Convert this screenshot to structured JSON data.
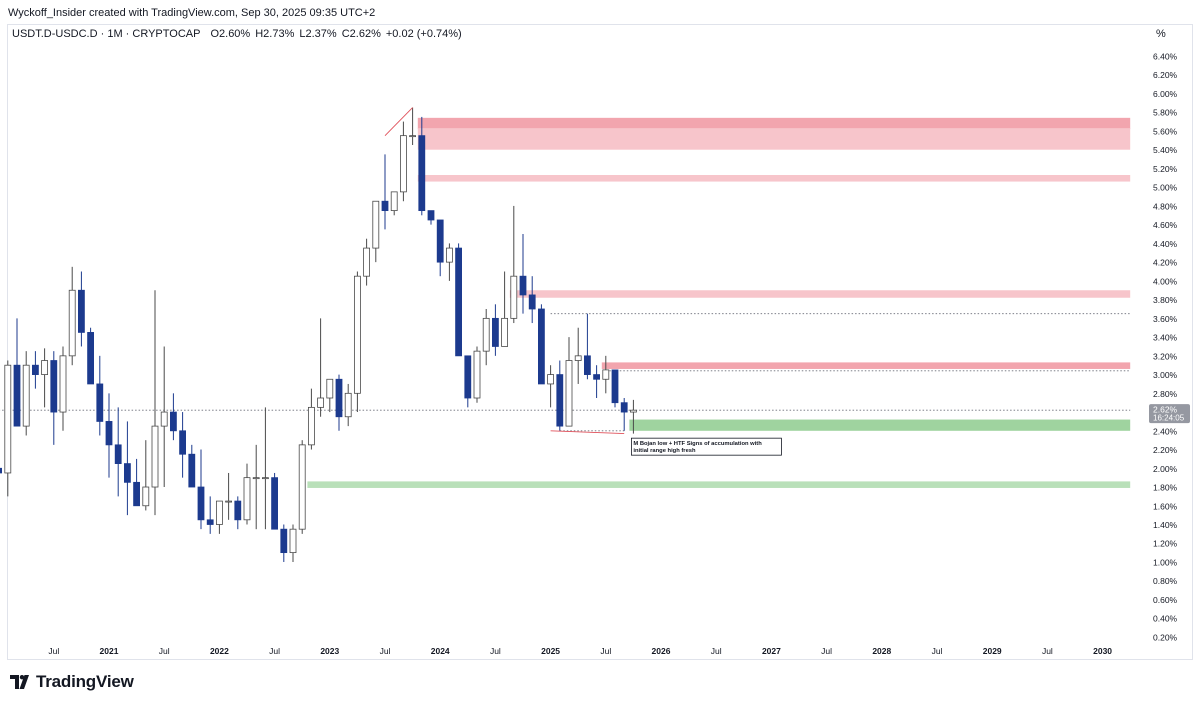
{
  "caption": "Wyckoff_Insider created with TradingView.com, Sep 30, 2025 09:35 UTC+2",
  "legend": {
    "symbol": "USDT.D-USDC.D · 1M · CRYPTOCAP",
    "o_label": "O",
    "o_value": "2.60%",
    "h_label": "H",
    "h_value": "2.73%",
    "l_label": "L",
    "l_value": "2.37%",
    "c_label": "C",
    "c_value": "2.62%",
    "change": "+0.02 (+0.74%)"
  },
  "unit": "%",
  "brand": "TradingView",
  "colors": {
    "bull_fill": "#ffffff",
    "bull_border": "#4a4a4a",
    "bear_fill": "#1c3a8e",
    "bear_border": "#1c3a8e",
    "supply_zone": "#f7c5cb",
    "supply_zone_strong": "#f2a5ae",
    "demand_zone": "#b9e0b9",
    "demand_zone_strong": "#9fd39f",
    "annotation_line": "#e0505a",
    "price_tag_bg": "#9598a1"
  },
  "chart_data": {
    "type": "candlestick",
    "interval": "1M",
    "ylim": [
      0.15,
      6.55
    ],
    "y_ticks": [
      6.4,
      6.2,
      6.0,
      5.8,
      5.6,
      5.4,
      5.2,
      5.0,
      4.8,
      4.6,
      4.4,
      4.2,
      4.0,
      3.8,
      3.6,
      3.4,
      3.2,
      3.0,
      2.8,
      2.6,
      2.4,
      2.2,
      2.0,
      1.8,
      1.6,
      1.4,
      1.2,
      1.0,
      0.8,
      0.6,
      0.4,
      0.2
    ],
    "y_tick_labels": [
      "6.40%",
      "6.20%",
      "6.00%",
      "5.80%",
      "5.60%",
      "5.40%",
      "5.20%",
      "5.00%",
      "4.80%",
      "4.60%",
      "4.40%",
      "4.20%",
      "4.00%",
      "3.80%",
      "3.60%",
      "3.40%",
      "3.20%",
      "3.00%",
      "2.80%",
      "2.60%",
      "2.40%",
      "2.20%",
      "2.00%",
      "1.80%",
      "1.60%",
      "1.40%",
      "1.20%",
      "1.00%",
      "0.80%",
      "0.60%",
      "0.40%",
      "0.20%"
    ],
    "x_ticks": [
      {
        "label": "Jul",
        "at": "2020-07"
      },
      {
        "label": "2021",
        "at": "2021-01"
      },
      {
        "label": "Jul",
        "at": "2021-07"
      },
      {
        "label": "2022",
        "at": "2022-01"
      },
      {
        "label": "Jul",
        "at": "2022-07"
      },
      {
        "label": "2023",
        "at": "2023-01"
      },
      {
        "label": "Jul",
        "at": "2023-07"
      },
      {
        "label": "2024",
        "at": "2024-01"
      },
      {
        "label": "Jul",
        "at": "2024-07"
      },
      {
        "label": "2025",
        "at": "2025-01"
      },
      {
        "label": "Jul",
        "at": "2025-07"
      },
      {
        "label": "2026",
        "at": "2026-01"
      },
      {
        "label": "Jul",
        "at": "2026-07"
      },
      {
        "label": "2027",
        "at": "2027-01"
      },
      {
        "label": "Jul",
        "at": "2027-07"
      },
      {
        "label": "2028",
        "at": "2028-01"
      },
      {
        "label": "Jul",
        "at": "2028-07"
      },
      {
        "label": "2029",
        "at": "2029-01"
      },
      {
        "label": "Jul",
        "at": "2029-07"
      },
      {
        "label": "2030",
        "at": "2030-01"
      }
    ],
    "candles": [
      {
        "t": "2020-01",
        "o": 2.0,
        "h": 2.95,
        "l": 1.9,
        "c": 1.95
      },
      {
        "t": "2020-02",
        "o": 1.95,
        "h": 3.15,
        "l": 1.7,
        "c": 3.1
      },
      {
        "t": "2020-03",
        "o": 3.1,
        "h": 3.6,
        "l": 2.45,
        "c": 2.45
      },
      {
        "t": "2020-04",
        "o": 2.45,
        "h": 3.25,
        "l": 2.35,
        "c": 3.1
      },
      {
        "t": "2020-05",
        "o": 3.1,
        "h": 3.25,
        "l": 2.85,
        "c": 3.0
      },
      {
        "t": "2020-06",
        "o": 3.0,
        "h": 3.28,
        "l": 2.65,
        "c": 3.15
      },
      {
        "t": "2020-07",
        "o": 3.15,
        "h": 3.25,
        "l": 2.25,
        "c": 2.6
      },
      {
        "t": "2020-08",
        "o": 2.6,
        "h": 3.3,
        "l": 2.4,
        "c": 3.2
      },
      {
        "t": "2020-09",
        "o": 3.2,
        "h": 4.15,
        "l": 3.1,
        "c": 3.9
      },
      {
        "t": "2020-10",
        "o": 3.9,
        "h": 4.1,
        "l": 3.3,
        "c": 3.45
      },
      {
        "t": "2020-11",
        "o": 3.45,
        "h": 3.5,
        "l": 2.9,
        "c": 2.9
      },
      {
        "t": "2020-12",
        "o": 2.9,
        "h": 3.2,
        "l": 2.35,
        "c": 2.5
      },
      {
        "t": "2021-01",
        "o": 2.5,
        "h": 2.8,
        "l": 1.9,
        "c": 2.25
      },
      {
        "t": "2021-02",
        "o": 2.25,
        "h": 2.65,
        "l": 1.7,
        "c": 2.05
      },
      {
        "t": "2021-03",
        "o": 2.05,
        "h": 2.5,
        "l": 1.5,
        "c": 1.85
      },
      {
        "t": "2021-04",
        "o": 1.85,
        "h": 2.1,
        "l": 1.6,
        "c": 1.6
      },
      {
        "t": "2021-05",
        "o": 1.6,
        "h": 2.3,
        "l": 1.55,
        "c": 1.8
      },
      {
        "t": "2021-06",
        "o": 1.8,
        "h": 3.9,
        "l": 1.5,
        "c": 2.45
      },
      {
        "t": "2021-07",
        "o": 2.45,
        "h": 3.3,
        "l": 1.8,
        "c": 2.6
      },
      {
        "t": "2021-08",
        "o": 2.6,
        "h": 2.8,
        "l": 2.3,
        "c": 2.4
      },
      {
        "t": "2021-09",
        "o": 2.4,
        "h": 2.6,
        "l": 1.9,
        "c": 2.15
      },
      {
        "t": "2021-10",
        "o": 2.15,
        "h": 2.25,
        "l": 1.8,
        "c": 1.8
      },
      {
        "t": "2021-11",
        "o": 1.8,
        "h": 2.2,
        "l": 1.35,
        "c": 1.45
      },
      {
        "t": "2021-12",
        "o": 1.45,
        "h": 1.7,
        "l": 1.3,
        "c": 1.4
      },
      {
        "t": "2022-01",
        "o": 1.4,
        "h": 1.65,
        "l": 1.3,
        "c": 1.65
      },
      {
        "t": "2022-02",
        "o": 1.65,
        "h": 1.95,
        "l": 1.45,
        "c": 1.65
      },
      {
        "t": "2022-03",
        "o": 1.65,
        "h": 1.7,
        "l": 1.35,
        "c": 1.45
      },
      {
        "t": "2022-04",
        "o": 1.45,
        "h": 2.05,
        "l": 1.4,
        "c": 1.9
      },
      {
        "t": "2022-05",
        "o": 1.9,
        "h": 2.25,
        "l": 1.35,
        "c": 1.9
      },
      {
        "t": "2022-06",
        "o": 1.9,
        "h": 2.65,
        "l": 1.35,
        "c": 1.9
      },
      {
        "t": "2022-07",
        "o": 1.9,
        "h": 1.95,
        "l": 1.35,
        "c": 1.35
      },
      {
        "t": "2022-08",
        "o": 1.35,
        "h": 1.4,
        "l": 1.0,
        "c": 1.1
      },
      {
        "t": "2022-09",
        "o": 1.1,
        "h": 1.4,
        "l": 1.0,
        "c": 1.35
      },
      {
        "t": "2022-10",
        "o": 1.35,
        "h": 2.3,
        "l": 1.3,
        "c": 2.25
      },
      {
        "t": "2022-11",
        "o": 2.25,
        "h": 2.85,
        "l": 2.2,
        "c": 2.65
      },
      {
        "t": "2022-12",
        "o": 2.65,
        "h": 3.6,
        "l": 2.55,
        "c": 2.75
      },
      {
        "t": "2023-01",
        "o": 2.75,
        "h": 2.95,
        "l": 2.6,
        "c": 2.95
      },
      {
        "t": "2023-02",
        "o": 2.95,
        "h": 3.0,
        "l": 2.4,
        "c": 2.55
      },
      {
        "t": "2023-03",
        "o": 2.55,
        "h": 2.9,
        "l": 2.45,
        "c": 2.8
      },
      {
        "t": "2023-04",
        "o": 2.8,
        "h": 4.1,
        "l": 2.6,
        "c": 4.05
      },
      {
        "t": "2023-05",
        "o": 4.05,
        "h": 4.45,
        "l": 3.95,
        "c": 4.35
      },
      {
        "t": "2023-06",
        "o": 4.35,
        "h": 4.85,
        "l": 4.2,
        "c": 4.85
      },
      {
        "t": "2023-07",
        "o": 4.85,
        "h": 5.35,
        "l": 4.55,
        "c": 4.75
      },
      {
        "t": "2023-08",
        "o": 4.75,
        "h": 4.95,
        "l": 4.7,
        "c": 4.95
      },
      {
        "t": "2023-09",
        "o": 4.95,
        "h": 5.7,
        "l": 4.85,
        "c": 5.55
      },
      {
        "t": "2023-10",
        "o": 5.55,
        "h": 5.85,
        "l": 5.45,
        "c": 5.55
      },
      {
        "t": "2023-11",
        "o": 5.55,
        "h": 5.75,
        "l": 4.7,
        "c": 4.75
      },
      {
        "t": "2023-12",
        "o": 4.75,
        "h": 4.75,
        "l": 4.6,
        "c": 4.65
      },
      {
        "t": "2024-01",
        "o": 4.65,
        "h": 4.65,
        "l": 4.05,
        "c": 4.2
      },
      {
        "t": "2024-02",
        "o": 4.2,
        "h": 4.4,
        "l": 4.0,
        "c": 4.35
      },
      {
        "t": "2024-03",
        "o": 4.35,
        "h": 4.4,
        "l": 3.2,
        "c": 3.2
      },
      {
        "t": "2024-04",
        "o": 3.2,
        "h": 3.2,
        "l": 2.65,
        "c": 2.75
      },
      {
        "t": "2024-05",
        "o": 2.75,
        "h": 3.3,
        "l": 2.7,
        "c": 3.25
      },
      {
        "t": "2024-06",
        "o": 3.25,
        "h": 3.7,
        "l": 3.1,
        "c": 3.6
      },
      {
        "t": "2024-07",
        "o": 3.6,
        "h": 3.75,
        "l": 3.2,
        "c": 3.3
      },
      {
        "t": "2024-08",
        "o": 3.3,
        "h": 4.1,
        "l": 3.3,
        "c": 3.6
      },
      {
        "t": "2024-09",
        "o": 3.6,
        "h": 4.8,
        "l": 3.55,
        "c": 4.05
      },
      {
        "t": "2024-10",
        "o": 4.05,
        "h": 4.5,
        "l": 3.65,
        "c": 3.85
      },
      {
        "t": "2024-11",
        "o": 3.85,
        "h": 4.05,
        "l": 3.55,
        "c": 3.7
      },
      {
        "t": "2024-12",
        "o": 3.7,
        "h": 3.75,
        "l": 2.9,
        "c": 2.9
      },
      {
        "t": "2025-01",
        "o": 2.9,
        "h": 3.1,
        "l": 2.65,
        "c": 3.0
      },
      {
        "t": "2025-02",
        "o": 3.0,
        "h": 3.15,
        "l": 2.4,
        "c": 2.45
      },
      {
        "t": "2025-03",
        "o": 2.45,
        "h": 3.4,
        "l": 2.45,
        "c": 3.15
      },
      {
        "t": "2025-04",
        "o": 3.15,
        "h": 3.5,
        "l": 2.9,
        "c": 3.2
      },
      {
        "t": "2025-05",
        "o": 3.2,
        "h": 3.65,
        "l": 2.95,
        "c": 3.0
      },
      {
        "t": "2025-06",
        "o": 3.0,
        "h": 3.1,
        "l": 2.75,
        "c": 2.95
      },
      {
        "t": "2025-07",
        "o": 2.95,
        "h": 3.2,
        "l": 2.8,
        "c": 3.05
      },
      {
        "t": "2025-08",
        "o": 3.05,
        "h": 3.05,
        "l": 2.65,
        "c": 2.7
      },
      {
        "t": "2025-09",
        "o": 2.7,
        "h": 2.75,
        "l": 2.4,
        "c": 2.6
      },
      {
        "t": "2025-10",
        "o": 2.6,
        "h": 2.73,
        "l": 2.37,
        "c": 2.62
      }
    ],
    "zones": [
      {
        "type": "supply",
        "y_low": 5.62,
        "y_high": 5.74,
        "t_start": "2023-11",
        "t_end": "2030-04",
        "strong": true
      },
      {
        "type": "supply",
        "y_low": 5.4,
        "y_high": 5.63,
        "t_start": "2023-11",
        "t_end": "2030-04",
        "strong": false
      },
      {
        "type": "supply",
        "y_low": 5.06,
        "y_high": 5.13,
        "t_start": "2023-11",
        "t_end": "2030-04",
        "strong": false
      },
      {
        "type": "supply",
        "y_low": 3.82,
        "y_high": 3.9,
        "t_start": "2024-09",
        "t_end": "2030-04",
        "strong": false
      },
      {
        "type": "supply",
        "y_low": 3.06,
        "y_high": 3.13,
        "t_start": "2025-07",
        "t_end": "2030-04",
        "strong": true
      },
      {
        "type": "demand",
        "y_low": 2.4,
        "y_high": 2.52,
        "t_start": "2025-10",
        "t_end": "2030-04",
        "strong": true
      },
      {
        "type": "demand",
        "y_low": 1.79,
        "y_high": 1.86,
        "t_start": "2022-11",
        "t_end": "2030-04",
        "strong": false
      }
    ],
    "h_lines": [
      {
        "y": 3.65,
        "t_start": "2025-01",
        "t_end": "2030-04",
        "style": "dotted"
      },
      {
        "y": 3.04,
        "t_start": "2025-07",
        "t_end": "2030-04",
        "style": "dotted"
      },
      {
        "y": 2.62,
        "t_start": "2020-01",
        "t_end": "2030-04",
        "style": "dotted"
      },
      {
        "y": 2.4,
        "t_start": "2025-02",
        "t_end": "2025-09",
        "style": "dotted"
      }
    ],
    "trend_lines": [
      {
        "t1": "2023-07",
        "y1": 5.55,
        "t2": "2023-10",
        "y2": 5.85
      },
      {
        "t1": "2025-01",
        "y1": 2.4,
        "t2": "2025-09",
        "y2": 2.37
      }
    ],
    "annotation": {
      "text_line1": "M Bojan low + HTF Signs of accumulation with",
      "text_line2": "initial range high fresh",
      "t": "2025-10",
      "y": 2.3
    },
    "last_price": {
      "value": "2.62%",
      "countdown": "16:24:05",
      "y": 2.62
    }
  }
}
